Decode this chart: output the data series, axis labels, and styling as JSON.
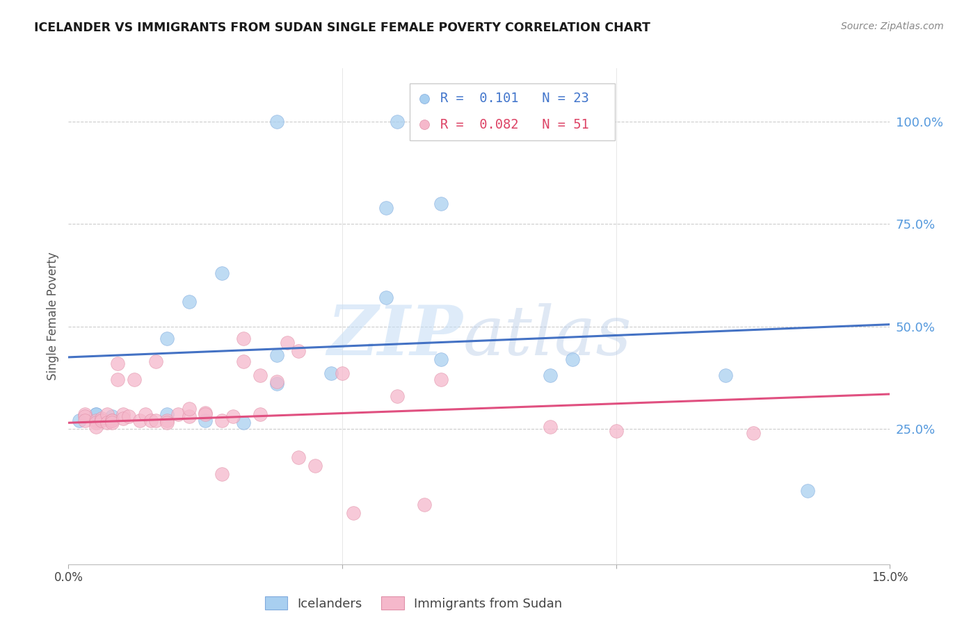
{
  "title": "ICELANDER VS IMMIGRANTS FROM SUDAN SINGLE FEMALE POVERTY CORRELATION CHART",
  "source": "Source: ZipAtlas.com",
  "ylabel": "Single Female Poverty",
  "right_yticks": [
    "100.0%",
    "75.0%",
    "50.0%",
    "25.0%"
  ],
  "right_ytick_vals": [
    1.0,
    0.75,
    0.5,
    0.25
  ],
  "xlim": [
    0.0,
    0.15
  ],
  "ylim": [
    -0.08,
    1.13
  ],
  "legend_r_blue": "0.101",
  "legend_n_blue": "23",
  "legend_r_pink": "0.082",
  "legend_n_pink": "51",
  "blue_color": "#a8cff0",
  "pink_color": "#f5b8cb",
  "line_blue": "#4472c4",
  "line_pink": "#e05080",
  "watermark_zip": "ZIP",
  "watermark_atlas": "atlas",
  "blue_scatter_x": [
    0.028,
    0.058,
    0.022,
    0.018,
    0.008,
    0.005,
    0.002,
    0.005,
    0.018,
    0.025,
    0.032,
    0.038,
    0.048,
    0.038,
    0.058,
    0.068,
    0.038,
    0.06,
    0.092,
    0.12,
    0.068,
    0.088,
    0.135
  ],
  "blue_scatter_y": [
    0.63,
    0.57,
    0.56,
    0.47,
    0.28,
    0.285,
    0.27,
    0.285,
    0.285,
    0.27,
    0.265,
    0.43,
    0.385,
    0.36,
    0.79,
    0.8,
    1.0,
    1.0,
    0.42,
    0.38,
    0.42,
    0.38,
    0.1
  ],
  "pink_scatter_x": [
    0.003,
    0.003,
    0.003,
    0.005,
    0.005,
    0.005,
    0.006,
    0.006,
    0.007,
    0.007,
    0.008,
    0.008,
    0.008,
    0.009,
    0.009,
    0.01,
    0.01,
    0.011,
    0.012,
    0.013,
    0.014,
    0.015,
    0.016,
    0.016,
    0.018,
    0.018,
    0.02,
    0.022,
    0.022,
    0.025,
    0.025,
    0.028,
    0.028,
    0.03,
    0.032,
    0.032,
    0.035,
    0.035,
    0.038,
    0.04,
    0.042,
    0.042,
    0.045,
    0.05,
    0.052,
    0.06,
    0.065,
    0.068,
    0.088,
    0.1,
    0.125
  ],
  "pink_scatter_y": [
    0.285,
    0.28,
    0.27,
    0.27,
    0.265,
    0.255,
    0.275,
    0.27,
    0.285,
    0.265,
    0.27,
    0.27,
    0.265,
    0.41,
    0.37,
    0.285,
    0.275,
    0.28,
    0.37,
    0.27,
    0.285,
    0.27,
    0.27,
    0.415,
    0.27,
    0.265,
    0.285,
    0.28,
    0.3,
    0.29,
    0.285,
    0.27,
    0.14,
    0.28,
    0.47,
    0.415,
    0.285,
    0.38,
    0.365,
    0.46,
    0.44,
    0.18,
    0.16,
    0.385,
    0.045,
    0.33,
    0.065,
    0.37,
    0.255,
    0.245,
    0.24
  ],
  "blue_trend_x": [
    0.0,
    0.15
  ],
  "blue_trend_y": [
    0.425,
    0.505
  ],
  "pink_trend_x": [
    0.0,
    0.15
  ],
  "pink_trend_y": [
    0.265,
    0.335
  ]
}
